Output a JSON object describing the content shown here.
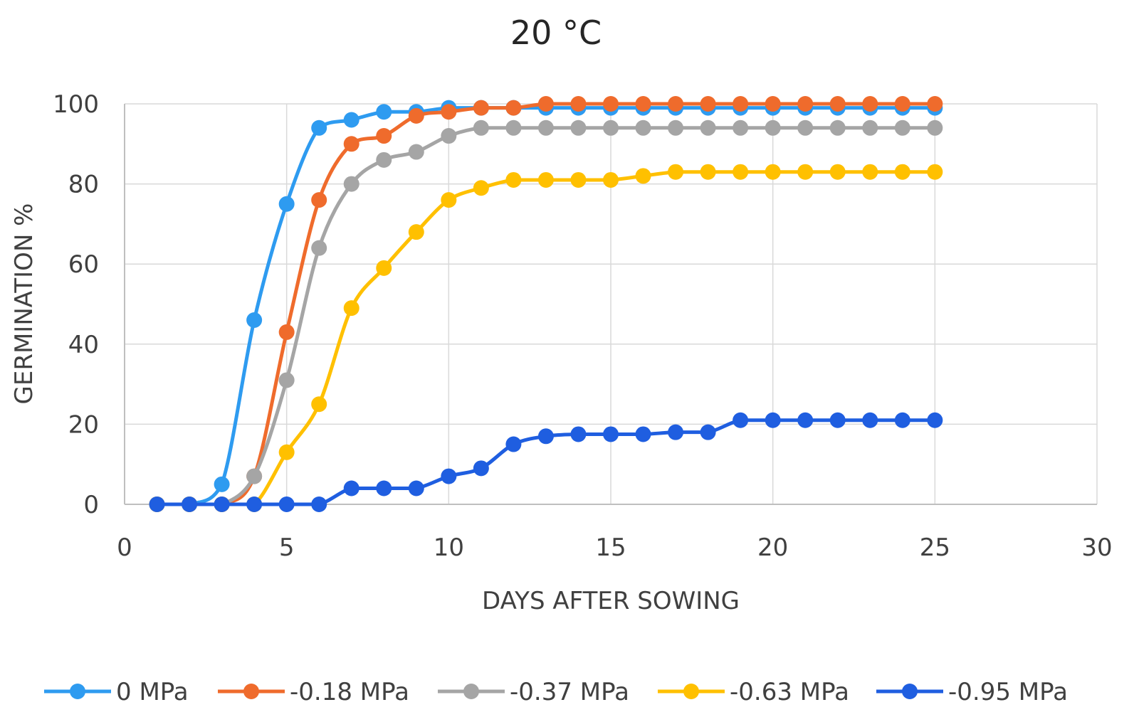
{
  "chart_data": {
    "type": "line",
    "title": "20 °C",
    "xlabel": "DAYS AFTER SOWING",
    "ylabel": "GERMINATION %",
    "xlim": [
      0,
      30
    ],
    "ylim": [
      0,
      100
    ],
    "x_ticks": [
      0,
      5,
      10,
      15,
      20,
      25,
      30
    ],
    "y_ticks": [
      0,
      20,
      40,
      60,
      80,
      100
    ],
    "grid": true,
    "smooth": true,
    "markers": true,
    "legend_position": "bottom",
    "x": [
      1,
      2,
      3,
      4,
      5,
      6,
      7,
      8,
      9,
      10,
      11,
      12,
      13,
      14,
      15,
      16,
      17,
      18,
      19,
      20,
      21,
      22,
      23,
      24,
      25
    ],
    "series": [
      {
        "name": "0 MPa",
        "color": "#2e9bf0",
        "values": [
          0,
          0,
          5,
          46,
          75,
          94,
          96,
          98,
          98,
          99,
          99,
          99,
          99,
          99,
          99,
          99,
          99,
          99,
          99,
          99,
          99,
          99,
          99,
          99,
          99
        ]
      },
      {
        "name": "-0.18 MPa",
        "color": "#ef6b2c",
        "values": [
          0,
          0,
          0,
          7,
          43,
          76,
          90,
          92,
          97,
          98,
          99,
          99,
          100,
          100,
          100,
          100,
          100,
          100,
          100,
          100,
          100,
          100,
          100,
          100,
          100
        ]
      },
      {
        "name": "-0.37 MPa",
        "color": "#a5a5a5",
        "values": [
          0,
          0,
          0,
          7,
          31,
          64,
          80,
          86,
          88,
          92,
          94,
          94,
          94,
          94,
          94,
          94,
          94,
          94,
          94,
          94,
          94,
          94,
          94,
          94,
          94
        ]
      },
      {
        "name": "-0.63 MPa",
        "color": "#ffc000",
        "values": [
          0,
          0,
          0,
          0,
          13,
          25,
          49,
          59,
          68,
          76,
          79,
          81,
          81,
          81,
          81,
          82,
          83,
          83,
          83,
          83,
          83,
          83,
          83,
          83,
          83
        ]
      },
      {
        "name": "-0.95 MPa",
        "color": "#1f5ee0",
        "values": [
          0,
          0,
          0,
          0,
          0,
          0,
          4,
          4,
          4,
          7,
          9,
          15,
          17,
          17.5,
          17.5,
          17.5,
          18,
          18,
          21,
          21,
          21,
          21,
          21,
          21,
          21
        ]
      }
    ]
  }
}
